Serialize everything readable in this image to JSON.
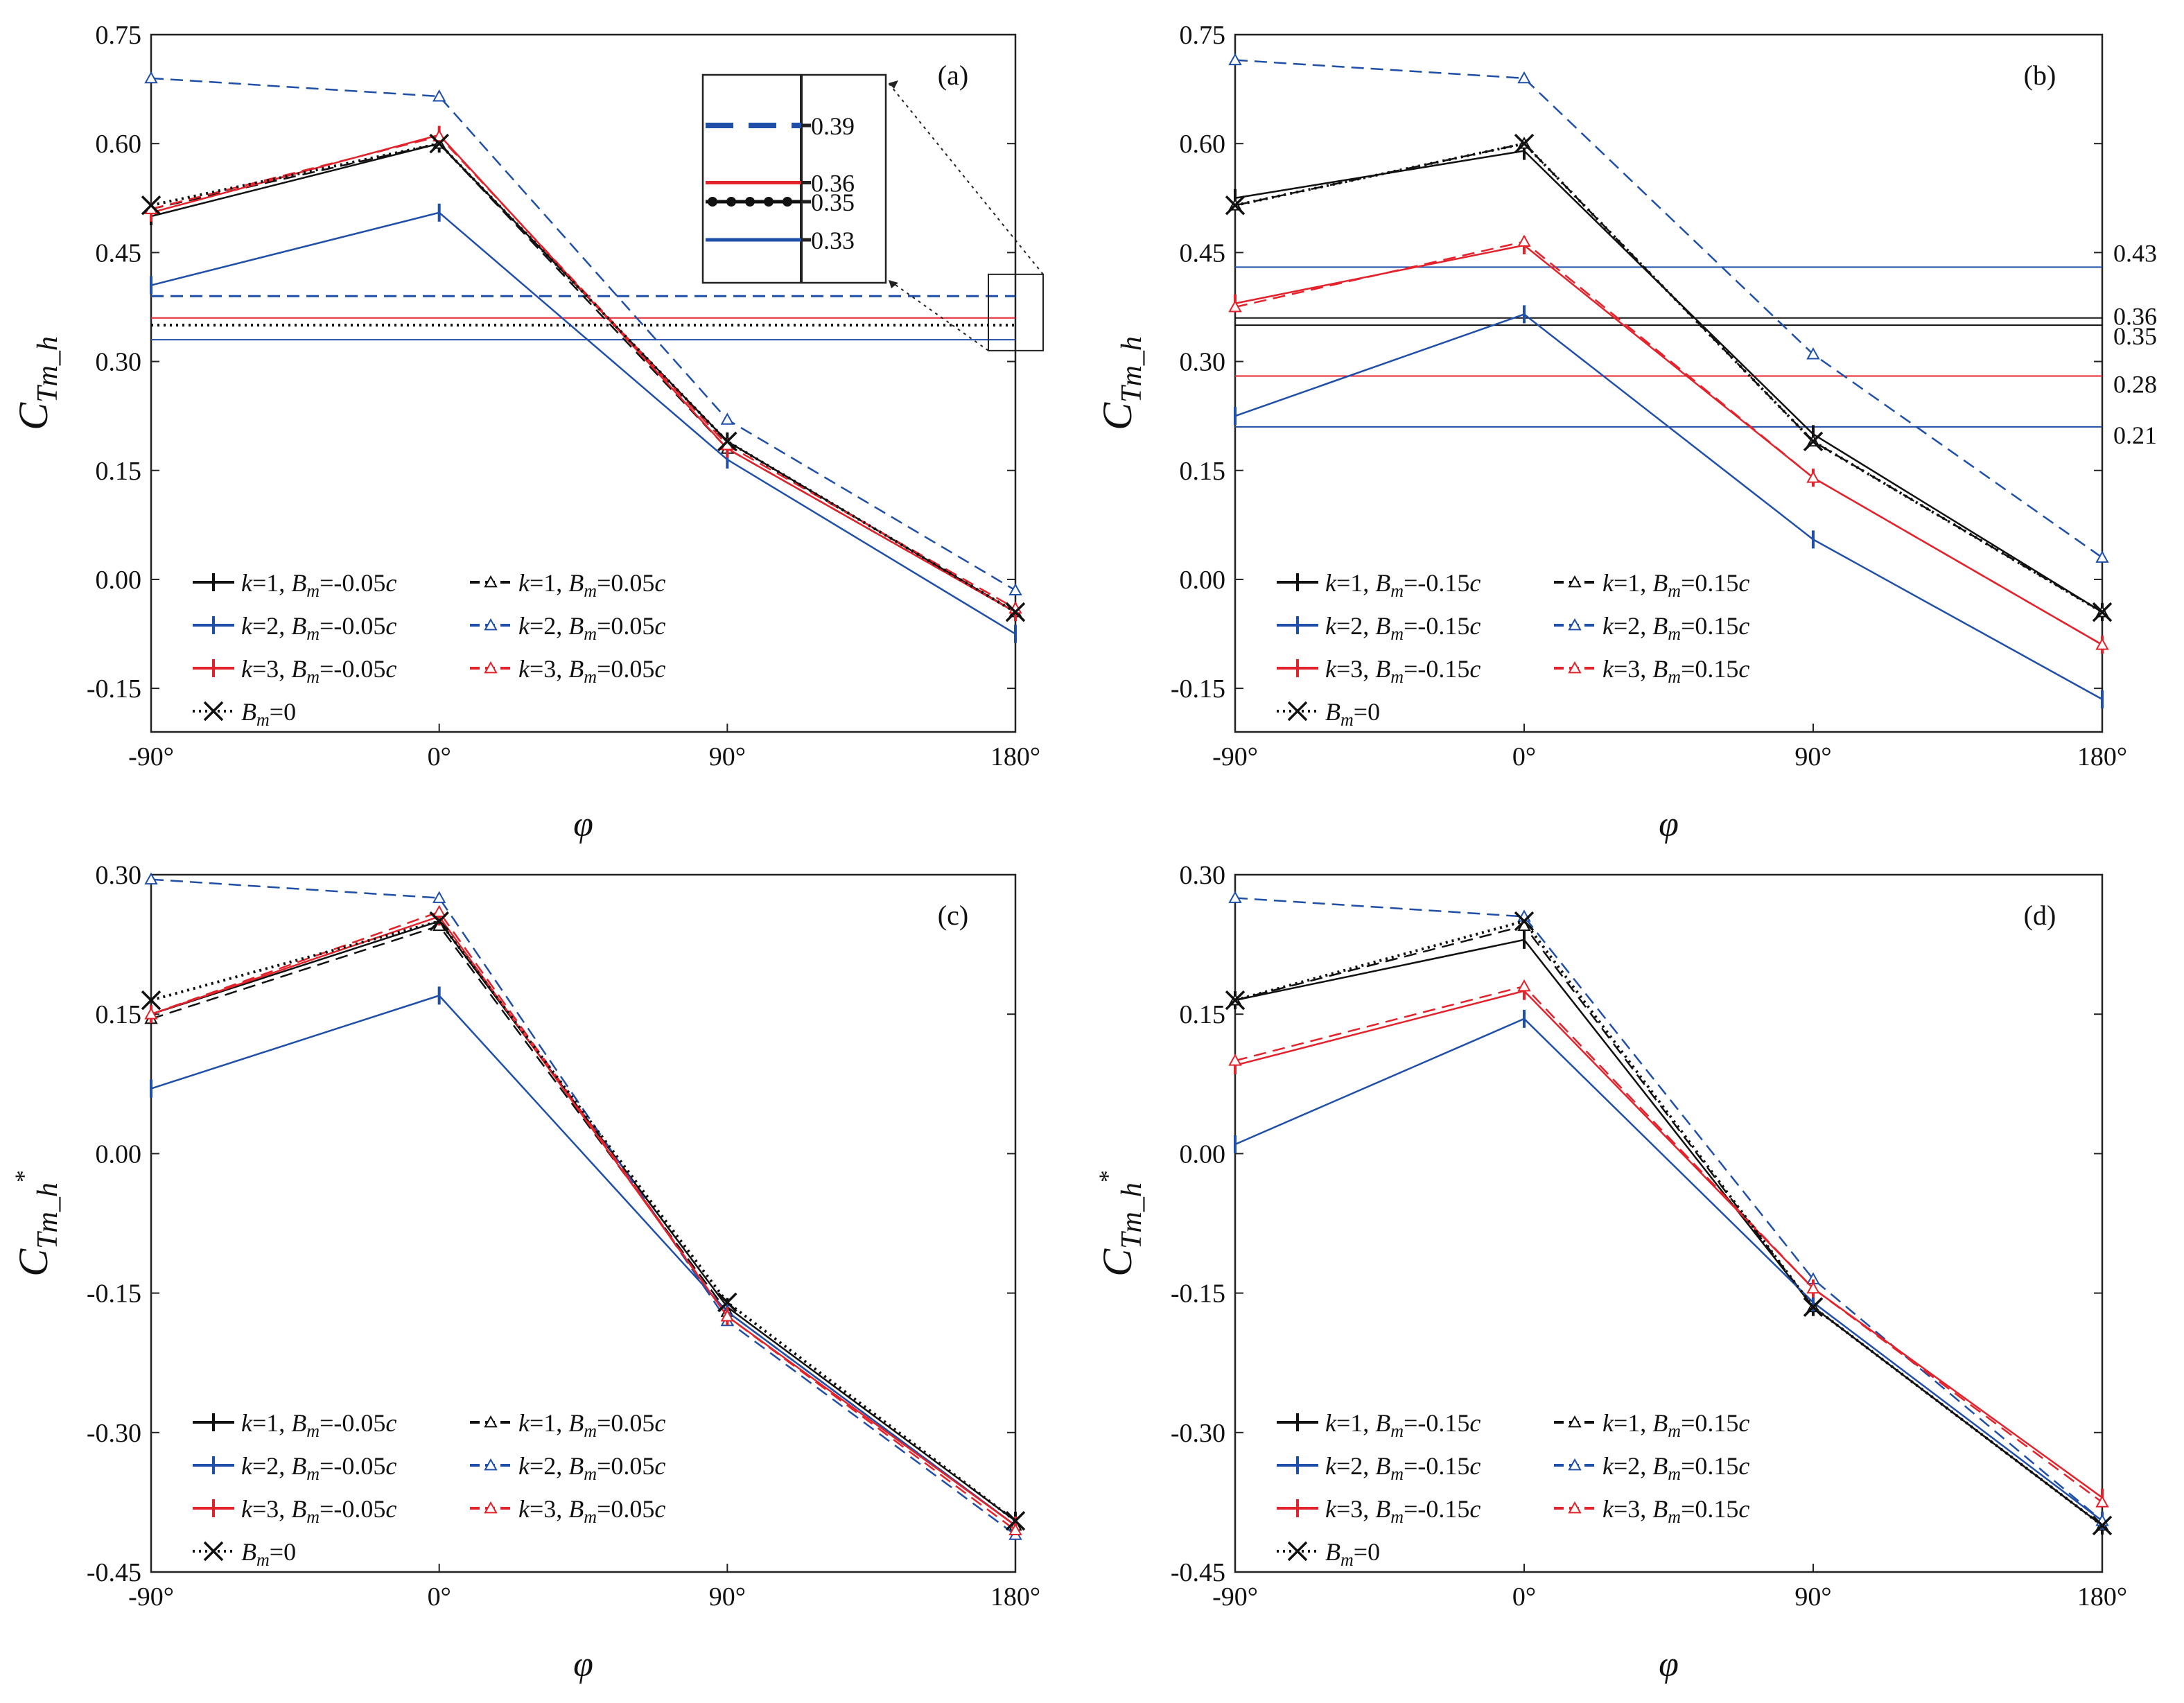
{
  "figure": {
    "colors": {
      "black": "#111111",
      "blue": "#1f4fa8",
      "red": "#e3222b",
      "frame": "#222222"
    },
    "x_label": "φ",
    "x_tick_labels": [
      "-90°",
      "0°",
      "90°",
      "180°"
    ]
  },
  "chart_data": [
    {
      "type": "line",
      "panel": "(a)",
      "ylabel": {
        "main": "C",
        "sub": "Tm_h",
        "sup": ""
      },
      "xlabel": "φ",
      "x": [
        -90,
        0,
        90,
        180
      ],
      "x_tick_labels": [
        "-90°",
        "0°",
        "90°",
        "180°"
      ],
      "ylim": [
        -0.21,
        0.75
      ],
      "yticks": [
        0.75,
        0.6,
        0.45,
        0.3,
        0.15,
        0.0,
        -0.15
      ],
      "ytick_labels": [
        "0.75",
        "0.60",
        "0.45",
        "0.30",
        "0.15",
        "0.00",
        "-0.15"
      ],
      "series": [
        {
          "name": "k=1, Bm=-0.05c",
          "color": "black",
          "style": "solid",
          "marker": "bar",
          "values": [
            0.5,
            0.6,
            0.19,
            -0.045
          ]
        },
        {
          "name": "k=1, Bm=0.05c",
          "color": "black",
          "style": "dashed",
          "marker": "triangle",
          "values": [
            0.51,
            0.6,
            0.18,
            -0.045
          ]
        },
        {
          "name": "k=2, Bm=-0.05c",
          "color": "blue",
          "style": "solid",
          "marker": "bar",
          "values": [
            0.405,
            0.505,
            0.165,
            -0.075
          ]
        },
        {
          "name": "k=2, Bm=0.05c",
          "color": "blue",
          "style": "dashed",
          "marker": "triangle",
          "values": [
            0.69,
            0.665,
            0.22,
            -0.015
          ]
        },
        {
          "name": "k=3, Bm=-0.05c",
          "color": "red",
          "style": "solid",
          "marker": "bar",
          "values": [
            0.505,
            0.612,
            0.18,
            -0.045
          ]
        },
        {
          "name": "k=3, Bm=0.05c",
          "color": "red",
          "style": "dashed",
          "marker": "triangle",
          "values": [
            0.51,
            0.61,
            0.185,
            -0.04
          ]
        },
        {
          "name": "Bm=0",
          "color": "black",
          "style": "dotted",
          "marker": "x",
          "values": [
            0.515,
            0.6,
            0.19,
            -0.045
          ]
        }
      ],
      "ref_lines": [
        {
          "value": 0.39,
          "color": "blue",
          "style": "dashed",
          "label": "0.39"
        },
        {
          "value": 0.36,
          "color": "red",
          "style": "solid",
          "label": "0.36"
        },
        {
          "value": 0.35,
          "color": "black",
          "style": "dotted",
          "label": "0.35"
        },
        {
          "value": 0.33,
          "color": "blue",
          "style": "solid",
          "label": "0.33"
        }
      ],
      "ref_labels_position": "inset",
      "legend": [
        [
          {
            "k": "1",
            "bm": "-0.05",
            "series": 0
          },
          {
            "k": "2",
            "bm": "-0.05",
            "series": 2
          },
          {
            "k": "3",
            "bm": "-0.05",
            "series": 4
          },
          {
            "bm0": true,
            "series": 6
          }
        ],
        [
          {
            "k": "1",
            "bm": "0.05",
            "series": 1
          },
          {
            "k": "2",
            "bm": "0.05",
            "series": 3
          },
          {
            "k": "3",
            "bm": "0.05",
            "series": 5
          }
        ]
      ]
    },
    {
      "type": "line",
      "panel": "(b)",
      "ylabel": {
        "main": "C",
        "sub": "Tm_h",
        "sup": ""
      },
      "xlabel": "φ",
      "x": [
        -90,
        0,
        90,
        180
      ],
      "x_tick_labels": [
        "-90°",
        "0°",
        "90°",
        "180°"
      ],
      "ylim": [
        -0.21,
        0.75
      ],
      "yticks": [
        0.75,
        0.6,
        0.45,
        0.3,
        0.15,
        0.0,
        -0.15
      ],
      "ytick_labels": [
        "0.75",
        "0.60",
        "0.45",
        "0.30",
        "0.15",
        "0.00",
        "-0.15"
      ],
      "series": [
        {
          "name": "k=1, Bm=-0.15c",
          "color": "black",
          "style": "solid",
          "marker": "bar",
          "values": [
            0.525,
            0.59,
            0.2,
            -0.045
          ]
        },
        {
          "name": "k=1, Bm=0.15c",
          "color": "black",
          "style": "dashed",
          "marker": "triangle",
          "values": [
            0.515,
            0.6,
            0.19,
            -0.045
          ]
        },
        {
          "name": "k=2, Bm=-0.15c",
          "color": "blue",
          "style": "solid",
          "marker": "bar",
          "values": [
            0.225,
            0.365,
            0.055,
            -0.165
          ]
        },
        {
          "name": "k=2, Bm=0.15c",
          "color": "blue",
          "style": "dashed",
          "marker": "triangle",
          "values": [
            0.715,
            0.69,
            0.31,
            0.03
          ]
        },
        {
          "name": "k=3, Bm=-0.15c",
          "color": "red",
          "style": "solid",
          "marker": "bar",
          "values": [
            0.38,
            0.46,
            0.14,
            -0.09
          ]
        },
        {
          "name": "k=3, Bm=0.15c",
          "color": "red",
          "style": "dashed",
          "marker": "triangle",
          "values": [
            0.375,
            0.465,
            0.14,
            -0.09
          ]
        },
        {
          "name": "Bm=0",
          "color": "black",
          "style": "dotted",
          "marker": "x",
          "values": [
            0.515,
            0.6,
            0.19,
            -0.045
          ]
        }
      ],
      "ref_lines": [
        {
          "value": 0.43,
          "color": "blue",
          "style": "solid",
          "label": "0.43"
        },
        {
          "value": 0.36,
          "color": "black",
          "style": "solid",
          "label": "0.36"
        },
        {
          "value": 0.35,
          "color": "black",
          "style": "solid",
          "label": "0.35"
        },
        {
          "value": 0.28,
          "color": "red",
          "style": "solid",
          "label": "0.28"
        },
        {
          "value": 0.21,
          "color": "blue",
          "style": "solid",
          "label": "0.21"
        }
      ],
      "ref_labels_position": "right",
      "legend": [
        [
          {
            "k": "1",
            "bm": "-0.15",
            "series": 0
          },
          {
            "k": "2",
            "bm": "-0.15",
            "series": 2
          },
          {
            "k": "3",
            "bm": "-0.15",
            "series": 4
          },
          {
            "bm0": true,
            "series": 6
          }
        ],
        [
          {
            "k": "1",
            "bm": "0.15",
            "series": 1
          },
          {
            "k": "2",
            "bm": "0.15",
            "series": 3
          },
          {
            "k": "3",
            "bm": "0.15",
            "series": 5
          }
        ]
      ]
    },
    {
      "type": "line",
      "panel": "(c)",
      "ylabel": {
        "main": "C",
        "sub": "Tm_h",
        "sup": "*"
      },
      "xlabel": "φ",
      "x": [
        -90,
        0,
        90,
        180
      ],
      "x_tick_labels": [
        "-90°",
        "0°",
        "90°",
        "180°"
      ],
      "ylim": [
        -0.45,
        0.3
      ],
      "yticks": [
        0.3,
        0.15,
        0.0,
        -0.15,
        -0.3,
        -0.45
      ],
      "ytick_labels": [
        "0.30",
        "0.15",
        "0.00",
        "-0.15",
        "-0.30",
        "-0.45"
      ],
      "series": [
        {
          "name": "k=1, Bm=-0.05c",
          "color": "black",
          "style": "solid",
          "marker": "bar",
          "values": [
            0.15,
            0.25,
            -0.165,
            -0.395
          ]
        },
        {
          "name": "k=1, Bm=0.05c",
          "color": "black",
          "style": "dashed",
          "marker": "triangle",
          "values": [
            0.145,
            0.245,
            -0.17,
            -0.4
          ]
        },
        {
          "name": "k=2, Bm=-0.05c",
          "color": "blue",
          "style": "solid",
          "marker": "bar",
          "values": [
            0.07,
            0.17,
            -0.17,
            -0.4
          ]
        },
        {
          "name": "k=2, Bm=0.05c",
          "color": "blue",
          "style": "dashed",
          "marker": "triangle",
          "values": [
            0.295,
            0.275,
            -0.18,
            -0.41
          ]
        },
        {
          "name": "k=3, Bm=-0.05c",
          "color": "red",
          "style": "solid",
          "marker": "bar",
          "values": [
            0.15,
            0.255,
            -0.175,
            -0.4
          ]
        },
        {
          "name": "k=3, Bm=0.05c",
          "color": "red",
          "style": "dashed",
          "marker": "triangle",
          "values": [
            0.15,
            0.26,
            -0.175,
            -0.405
          ]
        },
        {
          "name": "Bm=0",
          "color": "black",
          "style": "dotted",
          "marker": "x",
          "values": [
            0.165,
            0.25,
            -0.16,
            -0.395
          ]
        }
      ],
      "ref_lines": [],
      "legend": [
        [
          {
            "k": "1",
            "bm": "-0.05",
            "series": 0
          },
          {
            "k": "2",
            "bm": "-0.05",
            "series": 2
          },
          {
            "k": "3",
            "bm": "-0.05",
            "series": 4
          },
          {
            "bm0": true,
            "series": 6
          }
        ],
        [
          {
            "k": "1",
            "bm": "0.05",
            "series": 1
          },
          {
            "k": "2",
            "bm": "0.05",
            "series": 3
          },
          {
            "k": "3",
            "bm": "0.05",
            "series": 5
          }
        ]
      ]
    },
    {
      "type": "line",
      "panel": "(d)",
      "ylabel": {
        "main": "C",
        "sub": "Tm_h",
        "sup": "*"
      },
      "xlabel": "φ",
      "x": [
        -90,
        0,
        90,
        180
      ],
      "x_tick_labels": [
        "-90°",
        "0°",
        "90°",
        "180°"
      ],
      "ylim": [
        -0.45,
        0.3
      ],
      "yticks": [
        0.3,
        0.15,
        0.0,
        -0.15,
        -0.3,
        -0.45
      ],
      "ytick_labels": [
        "0.30",
        "0.15",
        "0.00",
        "-0.15",
        "-0.30",
        "-0.45"
      ],
      "series": [
        {
          "name": "k=1, Bm=-0.15c",
          "color": "black",
          "style": "solid",
          "marker": "bar",
          "values": [
            0.165,
            0.23,
            -0.165,
            -0.4
          ]
        },
        {
          "name": "k=1, Bm=0.15c",
          "color": "black",
          "style": "dashed",
          "marker": "triangle",
          "values": [
            0.165,
            0.245,
            -0.165,
            -0.4
          ]
        },
        {
          "name": "k=2, Bm=-0.15c",
          "color": "blue",
          "style": "solid",
          "marker": "bar",
          "values": [
            0.01,
            0.145,
            -0.16,
            -0.395
          ]
        },
        {
          "name": "k=2, Bm=0.15c",
          "color": "blue",
          "style": "dashed",
          "marker": "triangle",
          "values": [
            0.275,
            0.255,
            -0.135,
            -0.395
          ]
        },
        {
          "name": "k=3, Bm=-0.15c",
          "color": "red",
          "style": "solid",
          "marker": "bar",
          "values": [
            0.095,
            0.175,
            -0.145,
            -0.37
          ]
        },
        {
          "name": "k=3, Bm=0.15c",
          "color": "red",
          "style": "dashed",
          "marker": "triangle",
          "values": [
            0.1,
            0.18,
            -0.145,
            -0.375
          ]
        },
        {
          "name": "Bm=0",
          "color": "black",
          "style": "dotted",
          "marker": "x",
          "values": [
            0.165,
            0.25,
            -0.165,
            -0.4
          ]
        }
      ],
      "ref_lines": [],
      "legend": [
        [
          {
            "k": "1",
            "bm": "-0.15",
            "series": 0
          },
          {
            "k": "2",
            "bm": "-0.15",
            "series": 2
          },
          {
            "k": "3",
            "bm": "-0.15",
            "series": 4
          },
          {
            "bm0": true,
            "series": 6
          }
        ],
        [
          {
            "k": "1",
            "bm": "0.15",
            "series": 1
          },
          {
            "k": "2",
            "bm": "0.15",
            "series": 3
          },
          {
            "k": "3",
            "bm": "0.15",
            "series": 5
          }
        ]
      ]
    }
  ]
}
